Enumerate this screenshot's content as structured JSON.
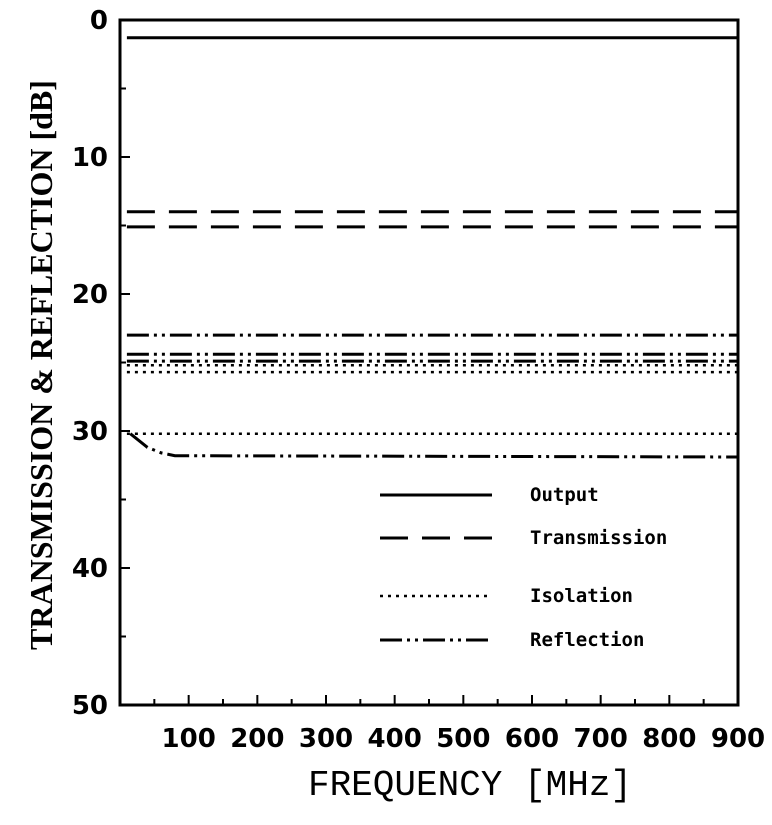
{
  "chart_data": {
    "type": "line",
    "title": "",
    "xlabel": "FREQUENCY [MHz]",
    "ylabel": "TRANSMISSION & REFLECTION [dB]",
    "xlim": [
      0,
      900
    ],
    "ylim": [
      0,
      50
    ],
    "y_inverted": true,
    "grid": false,
    "legend_position": "lower-right",
    "x_ticks": [
      100,
      200,
      300,
      400,
      500,
      600,
      700,
      800,
      900
    ],
    "x_tick_labels": [
      "100",
      "200",
      "300",
      "400",
      "500",
      "600",
      "700",
      "800",
      "900"
    ],
    "y_ticks": [
      0,
      10,
      20,
      30,
      40,
      50
    ],
    "y_tick_labels": [
      "0",
      "10",
      "20",
      "30",
      "40",
      "50"
    ],
    "series": [
      {
        "name": "Output",
        "style": "solid",
        "x": [
          10,
          900
        ],
        "y": [
          1.3,
          1.3
        ]
      },
      {
        "name": "Transmission",
        "style": "dashed",
        "x": [
          10,
          900
        ],
        "y": [
          14.0,
          14.0
        ]
      },
      {
        "name": "Transmission",
        "style": "dashed",
        "x": [
          10,
          900
        ],
        "y": [
          15.1,
          15.1
        ]
      },
      {
        "name": "Isolation",
        "style": "dotted",
        "x": [
          10,
          900
        ],
        "y": [
          25.2,
          25.2
        ]
      },
      {
        "name": "Isolation",
        "style": "dotted",
        "x": [
          10,
          900
        ],
        "y": [
          25.7,
          25.7
        ]
      },
      {
        "name": "Isolation",
        "style": "dotted",
        "x": [
          10,
          900
        ],
        "y": [
          30.2,
          30.2
        ]
      },
      {
        "name": "Reflection",
        "style": "dashdotdot",
        "x": [
          10,
          900
        ],
        "y": [
          23.0,
          23.0
        ]
      },
      {
        "name": "Reflection",
        "style": "dashdotdot",
        "x": [
          10,
          900
        ],
        "y": [
          24.4,
          24.4
        ]
      },
      {
        "name": "Reflection",
        "style": "dashdotdot",
        "x": [
          10,
          900
        ],
        "y": [
          24.9,
          24.9
        ]
      },
      {
        "name": "Reflection",
        "style": "dashdotdot",
        "x": [
          15,
          40,
          60,
          80,
          900
        ],
        "y": [
          30.2,
          31.2,
          31.6,
          31.8,
          31.9
        ]
      }
    ],
    "legend": [
      {
        "label": "Output",
        "style": "solid"
      },
      {
        "label": "Transmission",
        "style": "dashed"
      },
      {
        "label": "Isolation",
        "style": "dotted"
      },
      {
        "label": "Reflection",
        "style": "dashdotdot"
      }
    ]
  }
}
